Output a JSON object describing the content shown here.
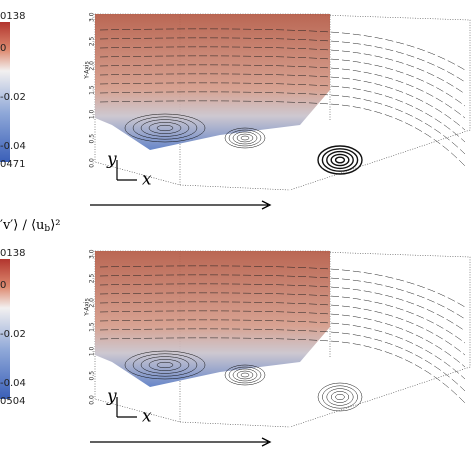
{
  "panels": [
    {
      "colorbar_labels": [
        "0138",
        "0",
        "-0.02",
        "-0.04",
        "0471"
      ],
      "y_axis_title": "Y-Axis",
      "yticks": [
        "0.0",
        "0.5",
        "1.0",
        "1.5",
        "2.0",
        "2.5",
        "3.0"
      ],
      "axis_y": "y",
      "axis_x": "x"
    },
    {
      "title": {
        "prefix": "′v′⟩ / ⟨u",
        "sub": "b",
        "suffix": "⟩²"
      },
      "colorbar_labels": [
        "0138",
        "0",
        "-0.02",
        "-0.04",
        "0504"
      ],
      "y_axis_title": "Y-Axis",
      "yticks": [
        "0.0",
        "0.5",
        "1.0",
        "1.5",
        "2.0",
        "2.5",
        "3.0"
      ],
      "axis_y": "y",
      "axis_x": "x"
    }
  ]
}
